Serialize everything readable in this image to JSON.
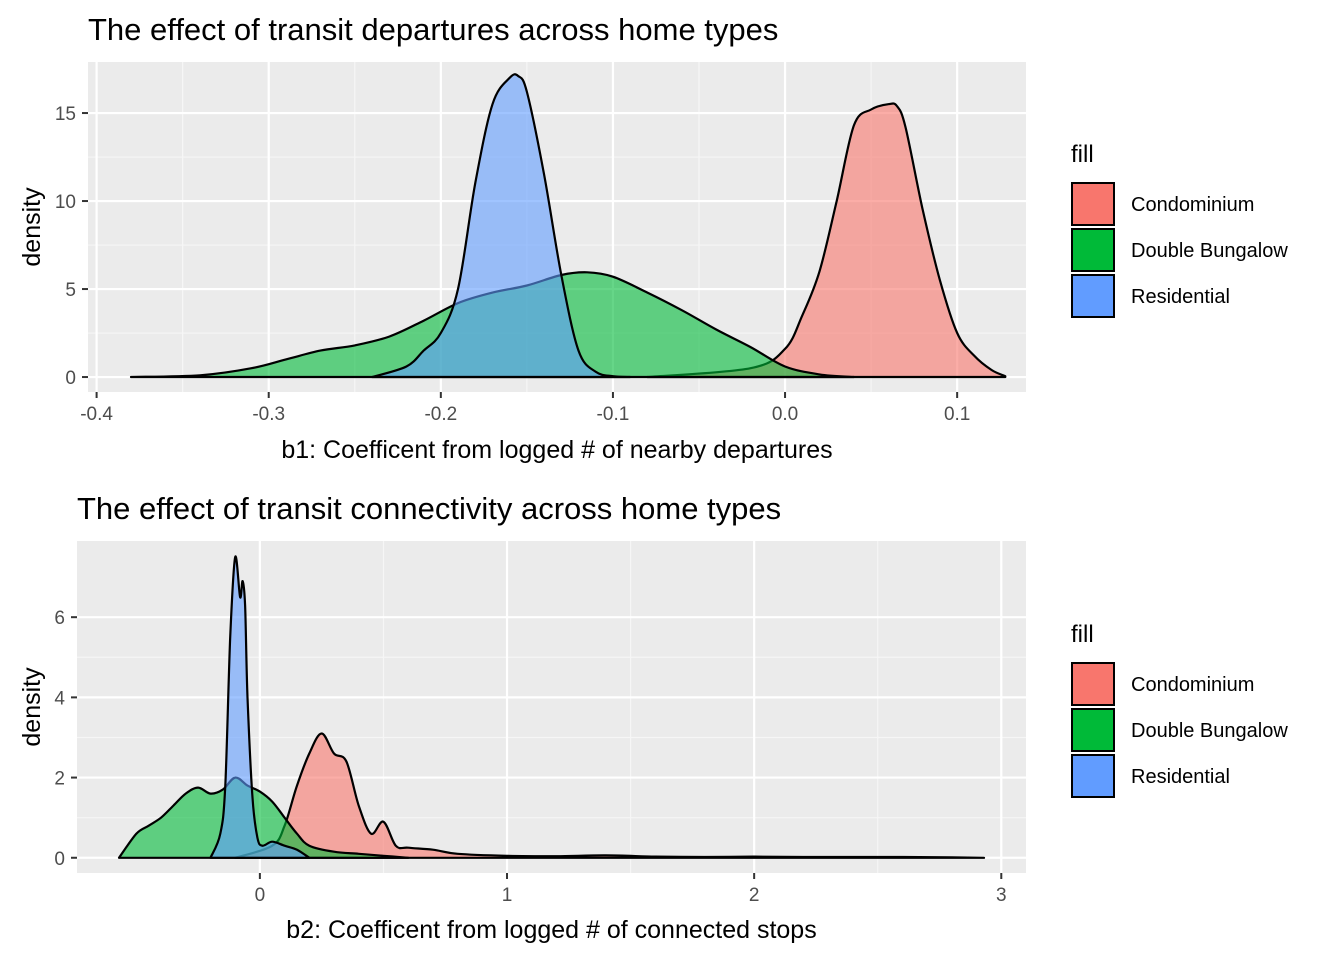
{
  "chart_data": [
    {
      "type": "area",
      "subtype": "density",
      "title": "The effect of transit departures across home types",
      "xlabel": "b1: Coefficent from logged # of nearby departures",
      "ylabel": "density",
      "xlim": [
        -0.405,
        0.14
      ],
      "ylim": [
        -0.85,
        17.9
      ],
      "x_ticks": [
        -0.4,
        -0.3,
        -0.2,
        -0.1,
        0.0,
        0.1
      ],
      "x_tick_labels": [
        "-0.4",
        "-0.3",
        "-0.2",
        "-0.1",
        "0.0",
        "0.1"
      ],
      "y_ticks": [
        0,
        5,
        10,
        15
      ],
      "y_tick_labels": [
        "0",
        "5",
        "10",
        "15"
      ],
      "grid": true,
      "legend": {
        "title": "fill",
        "position": "right",
        "entries": [
          "Condominium",
          "Double Bungalow",
          "Residential"
        ]
      },
      "series": [
        {
          "name": "Condominium",
          "color": "#F8766D",
          "x": [
            -0.08,
            -0.02,
            0.0,
            0.01,
            0.02,
            0.03,
            0.04,
            0.05,
            0.06,
            0.065,
            0.07,
            0.08,
            0.09,
            0.1,
            0.11,
            0.12,
            0.128
          ],
          "y": [
            0.0,
            0.5,
            1.6,
            3.5,
            6.0,
            10.0,
            14.3,
            15.2,
            15.5,
            15.4,
            14.2,
            9.5,
            5.5,
            2.5,
            1.2,
            0.4,
            0.05
          ]
        },
        {
          "name": "Double Bungalow",
          "color": "#00BA38",
          "x": [
            -0.38,
            -0.34,
            -0.31,
            -0.29,
            -0.27,
            -0.25,
            -0.23,
            -0.21,
            -0.19,
            -0.17,
            -0.15,
            -0.13,
            -0.115,
            -0.1,
            -0.08,
            -0.06,
            -0.04,
            -0.02,
            0.0,
            0.02,
            0.04
          ],
          "y": [
            0.0,
            0.1,
            0.5,
            1.0,
            1.5,
            1.8,
            2.3,
            3.2,
            4.2,
            4.8,
            5.2,
            5.8,
            5.95,
            5.7,
            4.8,
            3.8,
            2.7,
            1.7,
            0.6,
            0.15,
            0.0
          ]
        },
        {
          "name": "Residential",
          "color": "#619CFF",
          "x": [
            -0.24,
            -0.22,
            -0.21,
            -0.2,
            -0.19,
            -0.18,
            -0.17,
            -0.16,
            -0.155,
            -0.15,
            -0.14,
            -0.13,
            -0.12,
            -0.11,
            -0.1,
            -0.09
          ],
          "y": [
            0.0,
            0.6,
            1.5,
            2.5,
            5.0,
            11.0,
            15.5,
            17.0,
            17.1,
            16.2,
            11.5,
            5.8,
            1.5,
            0.3,
            0.05,
            0.0
          ]
        }
      ]
    },
    {
      "type": "area",
      "subtype": "density",
      "title": "The effect of transit connectivity across home types",
      "xlabel": "b2: Coefficent from logged # of connected stops",
      "ylabel": "density",
      "xlim": [
        -0.74,
        3.1
      ],
      "ylim": [
        -0.38,
        7.9
      ],
      "x_ticks": [
        0,
        1,
        2,
        3
      ],
      "x_tick_labels": [
        "0",
        "1",
        "2",
        "3"
      ],
      "y_ticks": [
        0,
        2,
        4,
        6
      ],
      "y_tick_labels": [
        "0",
        "2",
        "4",
        "6"
      ],
      "grid": true,
      "legend": {
        "title": "fill",
        "position": "right",
        "entries": [
          "Condominium",
          "Double Bungalow",
          "Residential"
        ]
      },
      "series": [
        {
          "name": "Condominium",
          "color": "#F8766D",
          "x": [
            -0.1,
            0.05,
            0.1,
            0.15,
            0.2,
            0.25,
            0.3,
            0.35,
            0.4,
            0.45,
            0.5,
            0.55,
            0.6,
            0.7,
            0.8,
            1.0,
            1.2,
            1.4,
            1.6,
            1.8,
            2.0,
            2.2,
            2.4,
            2.6,
            2.8,
            2.93
          ],
          "y": [
            0.0,
            0.3,
            0.8,
            1.8,
            2.6,
            3.1,
            2.6,
            2.4,
            1.3,
            0.6,
            0.9,
            0.3,
            0.25,
            0.2,
            0.1,
            0.05,
            0.04,
            0.06,
            0.03,
            0.02,
            0.03,
            0.02,
            0.02,
            0.02,
            0.01,
            0.0
          ]
        },
        {
          "name": "Double Bungalow",
          "color": "#00BA38",
          "x": [
            -0.57,
            -0.5,
            -0.45,
            -0.4,
            -0.35,
            -0.3,
            -0.25,
            -0.2,
            -0.15,
            -0.1,
            -0.05,
            0.0,
            0.05,
            0.1,
            0.15,
            0.2,
            0.3,
            0.4,
            0.5,
            0.6
          ],
          "y": [
            0.0,
            0.6,
            0.8,
            1.0,
            1.3,
            1.6,
            1.75,
            1.6,
            1.7,
            2.0,
            1.8,
            1.65,
            1.4,
            1.0,
            0.6,
            0.3,
            0.15,
            0.1,
            0.05,
            0.0
          ]
        },
        {
          "name": "Residential",
          "color": "#619CFF",
          "x": [
            -0.2,
            -0.16,
            -0.14,
            -0.12,
            -0.1,
            -0.08,
            -0.07,
            -0.06,
            -0.05,
            -0.03,
            -0.01,
            0.01,
            0.05,
            0.1,
            0.15,
            0.2
          ],
          "y": [
            0.0,
            0.6,
            1.8,
            5.5,
            7.5,
            6.5,
            6.9,
            6.3,
            4.0,
            1.5,
            0.5,
            0.3,
            0.4,
            0.3,
            0.2,
            0.0
          ]
        }
      ]
    }
  ]
}
